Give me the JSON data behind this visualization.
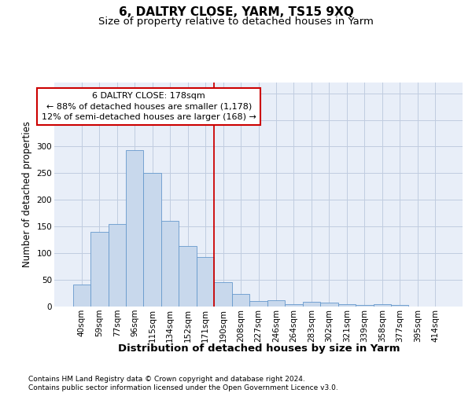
{
  "title": "6, DALTRY CLOSE, YARM, TS15 9XQ",
  "subtitle": "Size of property relative to detached houses in Yarm",
  "xlabel": "Distribution of detached houses by size in Yarm",
  "ylabel": "Number of detached properties",
  "categories": [
    "40sqm",
    "59sqm",
    "77sqm",
    "96sqm",
    "115sqm",
    "134sqm",
    "152sqm",
    "171sqm",
    "190sqm",
    "208sqm",
    "227sqm",
    "246sqm",
    "264sqm",
    "283sqm",
    "302sqm",
    "321sqm",
    "339sqm",
    "358sqm",
    "377sqm",
    "395sqm",
    "414sqm"
  ],
  "values": [
    42,
    140,
    155,
    293,
    251,
    160,
    113,
    93,
    46,
    24,
    10,
    12,
    5,
    9,
    8,
    4,
    3,
    4,
    3,
    0
  ],
  "bar_color": "#c8d8ec",
  "bar_edge_color": "#6699cc",
  "grid_color": "#c0cce0",
  "background_color": "#e8eef8",
  "vline_color": "#cc0000",
  "vline_x_index": 7.5,
  "ann_text_line1": "6 DALTRY CLOSE: 178sqm",
  "ann_text_line2": "← 88% of detached houses are smaller (1,178)",
  "ann_text_line3": "12% of semi-detached houses are larger (168) →",
  "footer_line1": "Contains HM Land Registry data © Crown copyright and database right 2024.",
  "footer_line2": "Contains public sector information licensed under the Open Government Licence v3.0.",
  "ylim_max": 420,
  "title_fontsize": 11,
  "subtitle_fontsize": 9.5,
  "xlabel_fontsize": 9.5,
  "ylabel_fontsize": 8.5,
  "tick_fontsize": 7.5,
  "ann_fontsize": 8,
  "footer_fontsize": 6.5
}
